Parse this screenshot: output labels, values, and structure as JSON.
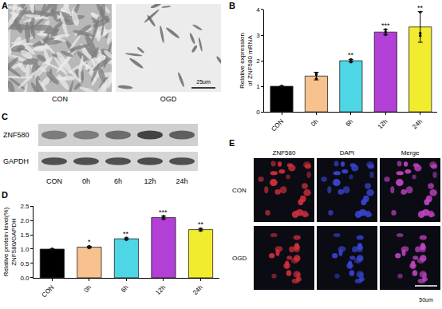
{
  "chart_data": [
    {
      "type": "bar",
      "panel_label": "B",
      "ylabel": "Relative expression\nof ZNF580 mRNA",
      "categories": [
        "CON",
        "0h",
        "6h",
        "12h",
        "24h"
      ],
      "values": [
        1.0,
        1.4,
        2.0,
        3.12,
        3.32
      ],
      "error": [
        0,
        0.15,
        0.05,
        0.1,
        0.6
      ],
      "points": [
        [
          1.0,
          1.0,
          1.0
        ],
        [
          1.3,
          1.45,
          1.5
        ],
        [
          1.95,
          2.0,
          2.05
        ],
        [
          3.02,
          3.12,
          3.22
        ],
        [
          2.98,
          3.08,
          3.9
        ]
      ],
      "significance": [
        null,
        null,
        "**",
        "***",
        "**"
      ],
      "colors": [
        "#000000",
        "#f7c28e",
        "#4fd6e6",
        "#b23fd6",
        "#f2ec2f"
      ],
      "ylim": [
        0,
        4
      ],
      "yticks": [
        0,
        1,
        2,
        3,
        4
      ],
      "grid": false
    },
    {
      "type": "bar",
      "panel_label": "D",
      "ylabel": "Relative protein level(%)\nZNF580/GAPDH",
      "categories": [
        "CON",
        "0h",
        "6h",
        "12h",
        "24h"
      ],
      "values": [
        1.0,
        1.07,
        1.36,
        2.1,
        1.68
      ],
      "error": [
        0,
        0.03,
        0.03,
        0.05,
        0.04
      ],
      "points": [
        [
          1.0,
          1.0,
          1.0
        ],
        [
          1.04,
          1.07,
          1.1
        ],
        [
          1.33,
          1.36,
          1.39
        ],
        [
          2.05,
          2.1,
          2.15
        ],
        [
          1.65,
          1.68,
          1.71
        ]
      ],
      "significance": [
        null,
        "*",
        "**",
        "***",
        "**"
      ],
      "colors": [
        "#000000",
        "#f7c28e",
        "#4fd6e6",
        "#b23fd6",
        "#f2ec2f"
      ],
      "ylim": [
        0,
        2.5
      ],
      "yticks": [
        {
          "value": 0,
          "label": "0.0"
        },
        {
          "value": 0.5,
          "label": "0.5"
        },
        {
          "value": 1,
          "label": "1.0"
        },
        {
          "value": 1.5,
          "label": "1.5"
        },
        {
          "value": 2,
          "label": "2.0"
        },
        {
          "value": 2.5,
          "label": "2.5"
        }
      ],
      "grid": false
    }
  ],
  "panels": {
    "A": {
      "label": "A",
      "images": [
        "CON",
        "OGD"
      ],
      "scale_bar": "25um"
    },
    "C": {
      "label": "C",
      "rows": [
        "ZNF580",
        "GAPDH"
      ],
      "lanes": [
        "CON",
        "0h",
        "6h",
        "12h",
        "24h"
      ]
    },
    "E": {
      "label": "E",
      "columns": [
        "ZNF580",
        "DAPI",
        "Merge"
      ],
      "rows": [
        "CON",
        "OGD"
      ],
      "scale_bar": "50um"
    }
  }
}
